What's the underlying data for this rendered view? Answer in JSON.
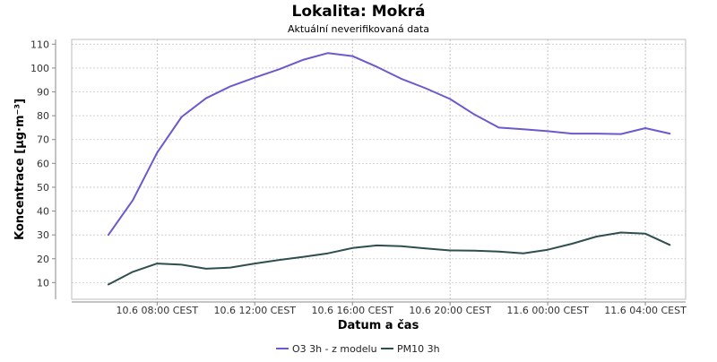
{
  "chart_data": {
    "type": "line",
    "title": "Lokalita: Mokrá",
    "subtitle": "Aktuální neverifikovaná data",
    "xlabel": "Datum a čas",
    "ylabel": "Koncentrace [µg·m⁻³]",
    "ylim": [
      3,
      112
    ],
    "yticks": [
      10,
      20,
      30,
      40,
      50,
      60,
      70,
      80,
      90,
      100,
      110
    ],
    "xticks": [
      {
        "label": "10.6 08:00 CEST",
        "hour": 8
      },
      {
        "label": "10.6 12:00 CEST",
        "hour": 12
      },
      {
        "label": "10.6 16:00 CEST",
        "hour": 16
      },
      {
        "label": "10.6 20:00 CEST",
        "hour": 20
      },
      {
        "label": "11.6 00:00 CEST",
        "hour": 24
      },
      {
        "label": "11.6 04:00 CEST",
        "hour": 28
      }
    ],
    "grid": true,
    "legend_position": "bottom",
    "x": [
      6,
      7,
      8,
      9,
      10,
      11,
      12,
      13,
      14,
      15,
      16,
      17,
      18,
      19,
      20,
      21,
      22,
      23,
      24,
      25,
      26,
      27,
      28,
      29
    ],
    "series": [
      {
        "name": "O3 3h - z modelu",
        "color": "#6a5acd",
        "values": [
          30,
          44.5,
          64.5,
          79.5,
          87.3,
          92.3,
          96,
          99.5,
          103.5,
          106.3,
          105,
          100.5,
          95.5,
          91.5,
          87,
          80.5,
          75,
          74.3,
          73.5,
          72.5,
          72.5,
          72.3,
          74.8,
          72.5
        ]
      },
      {
        "name": "PM10 3h",
        "color": "#2f4f4f",
        "values": [
          9.2,
          14.5,
          18,
          17.5,
          15.8,
          16.3,
          18,
          19.5,
          20.8,
          22.3,
          24.5,
          25.6,
          25.3,
          24.3,
          23.5,
          23.4,
          23,
          22.3,
          23.8,
          26.3,
          29.3,
          31,
          30.5,
          25.8
        ]
      }
    ]
  }
}
